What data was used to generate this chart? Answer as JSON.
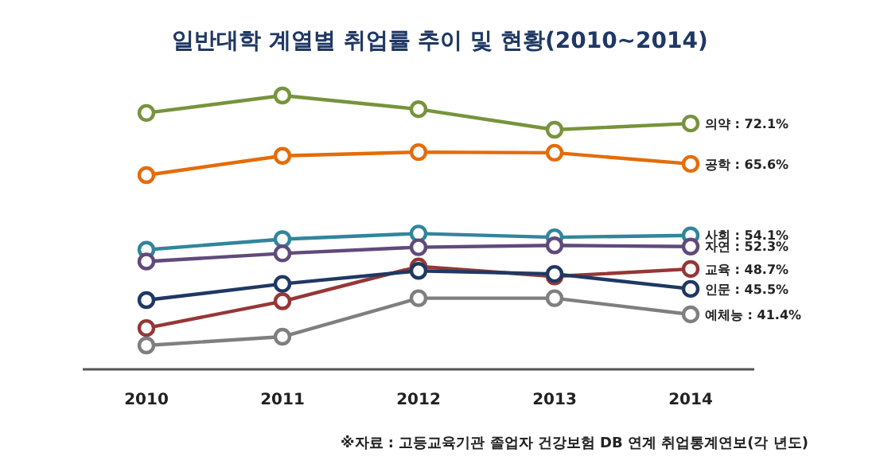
{
  "chart_data": {
    "type": "line",
    "title": "일반대학 계열별 취업률 추이 및 현황(2010~2014)",
    "categories": [
      "2010",
      "2011",
      "2012",
      "2013",
      "2014"
    ],
    "tick_labels": "x",
    "marker": "circle",
    "line_style": "solid",
    "series": [
      {
        "color": "#77933c",
        "values": [
          73.8,
          76.6,
          74.4,
          71.1,
          72.1
        ],
        "value_labels": [
          null,
          null,
          null,
          null,
          "의약 : 72.1%"
        ]
      },
      {
        "color": "#e46c0a",
        "values": [
          63.8,
          66.9,
          67.5,
          67.4,
          65.6
        ],
        "value_labels": [
          null,
          null,
          null,
          null,
          "공학 : 65.6%"
        ]
      },
      {
        "color": "#31859c",
        "values": [
          51.8,
          53.5,
          54.4,
          53.8,
          54.1
        ],
        "value_labels": [
          null,
          null,
          null,
          null,
          "사회 : 54.1%"
        ]
      },
      {
        "color": "#604a7b",
        "values": [
          49.9,
          51.2,
          52.2,
          52.5,
          52.3
        ],
        "value_labels": [
          null,
          null,
          null,
          null,
          "자연 : 52.3%"
        ]
      },
      {
        "color": "#953735",
        "values": [
          39.2,
          43.5,
          49.1,
          47.5,
          48.7
        ],
        "value_labels": [
          null,
          null,
          null,
          null,
          "교육 : 48.7%"
        ]
      },
      {
        "color": "#1f3864",
        "values": [
          43.7,
          46.3,
          48.4,
          47.9,
          45.5
        ],
        "value_labels": [
          null,
          null,
          null,
          null,
          "인문 : 45.5%"
        ]
      },
      {
        "color": "#7f7f7f",
        "values": [
          36.4,
          37.8,
          44.0,
          44.0,
          41.4
        ],
        "value_labels": [
          null,
          null,
          null,
          null,
          "예체능 : 41.4%"
        ]
      }
    ],
    "annotations": [
      "※자료 : 고등교육기관 졸업자 건강보험 DB 연계 취업통계연보(각 년도)"
    ]
  }
}
